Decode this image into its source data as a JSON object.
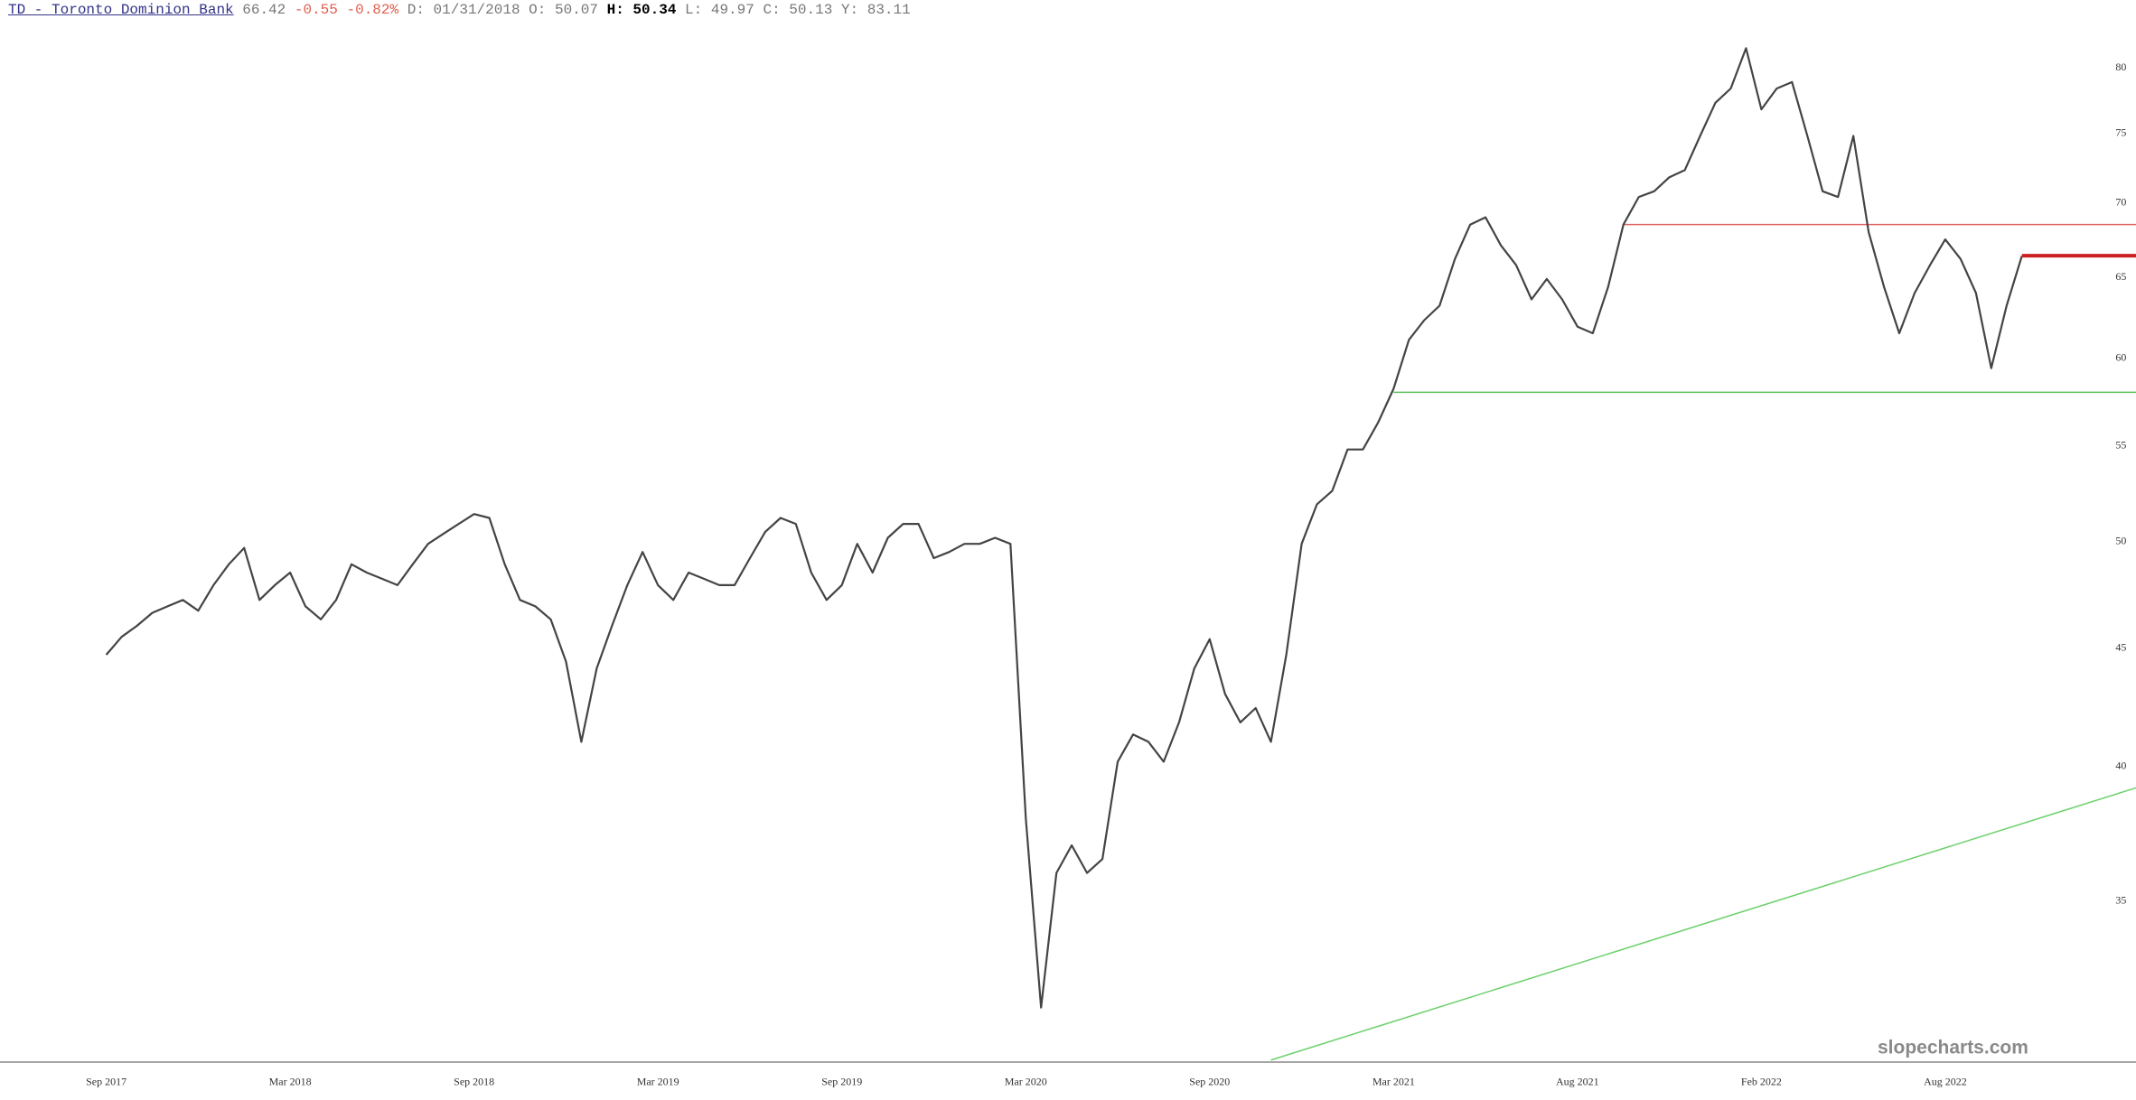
{
  "header": {
    "symbol": "TD - Toronto Dominion Bank",
    "price": 66.42,
    "change": -0.55,
    "change_pct": "-0.82%",
    "fields": [
      {
        "label": "D:",
        "value": "01/31/2018"
      },
      {
        "label": "O:",
        "value": 50.07
      },
      {
        "label": "H:",
        "value": 50.34,
        "highlight": true
      },
      {
        "label": "L:",
        "value": 49.97
      },
      {
        "label": "C:",
        "value": 50.13
      },
      {
        "label": "Y:",
        "value": 83.11
      }
    ]
  },
  "watermark": "slopecharts.com",
  "chart_data": {
    "type": "line",
    "color": "#444444",
    "log_scale": true,
    "categories": [
      "Sep 2017",
      null,
      null,
      null,
      null,
      null,
      null,
      null,
      null,
      null,
      null,
      null,
      "Mar 2018",
      null,
      null,
      null,
      null,
      null,
      null,
      null,
      null,
      null,
      null,
      null,
      "Sep 2018",
      null,
      null,
      null,
      null,
      null,
      null,
      null,
      null,
      null,
      null,
      null,
      "Mar 2019",
      null,
      null,
      null,
      null,
      null,
      null,
      null,
      null,
      null,
      null,
      null,
      "Sep 2019",
      null,
      null,
      null,
      null,
      null,
      null,
      null,
      null,
      null,
      null,
      null,
      "Mar 2020",
      null,
      null,
      null,
      null,
      null,
      null,
      null,
      null,
      null,
      null,
      null,
      "Sep 2020",
      null,
      null,
      null,
      null,
      null,
      null,
      null,
      null,
      null,
      null,
      null,
      "Mar 2021",
      null,
      null,
      null,
      null,
      null,
      null,
      null,
      null,
      null,
      null,
      null,
      "Aug 2021",
      null,
      null,
      null,
      null,
      null,
      null,
      null,
      null,
      null,
      null,
      null,
      "Feb 2022",
      null,
      null,
      null,
      null,
      null,
      null,
      null,
      null,
      null,
      null,
      null,
      "Aug 2022",
      null,
      null,
      null,
      null,
      null
    ],
    "values": [
      44.7,
      45.5,
      46.0,
      46.6,
      46.9,
      47.2,
      46.7,
      47.9,
      48.9,
      49.7,
      47.2,
      47.9,
      48.5,
      46.9,
      46.3,
      47.2,
      48.9,
      48.5,
      48.2,
      47.9,
      48.9,
      49.9,
      50.4,
      50.9,
      51.4,
      51.2,
      48.9,
      47.2,
      46.9,
      46.3,
      44.4,
      41.0,
      44.1,
      46.0,
      47.9,
      49.5,
      47.9,
      47.2,
      48.5,
      48.2,
      47.9,
      47.9,
      49.2,
      50.5,
      51.2,
      50.9,
      48.5,
      47.2,
      47.9,
      49.9,
      48.5,
      50.2,
      50.9,
      50.9,
      49.2,
      49.5,
      49.9,
      49.9,
      50.2,
      49.9,
      38.0,
      31.5,
      36.0,
      37.0,
      36.0,
      36.5,
      40.2,
      41.3,
      41.0,
      40.2,
      41.8,
      44.1,
      45.4,
      43.0,
      41.8,
      42.4,
      41.0,
      44.7,
      49.9,
      51.9,
      52.6,
      54.8,
      54.8,
      56.3,
      58.2,
      61.1,
      62.3,
      63.2,
      66.2,
      68.5,
      69.0,
      67.1,
      65.8,
      63.6,
      64.9,
      63.6,
      61.9,
      61.5,
      64.4,
      68.5,
      70.4,
      70.8,
      71.8,
      72.3,
      74.8,
      77.3,
      78.4,
      81.6,
      76.8,
      78.4,
      78.9,
      74.8,
      70.8,
      70.4,
      74.8,
      68.0,
      64.4,
      61.5,
      64.0,
      65.8,
      67.5,
      66.2,
      64.0,
      59.4,
      63.2,
      66.4
    ],
    "ylim": [
      29.84,
      85.6
    ],
    "yticks": [
      35,
      40,
      45,
      50,
      55,
      60,
      65,
      70,
      75,
      80
    ],
    "lines": [
      {
        "value": 68.5,
        "color": "#e06060",
        "start": 99
      },
      {
        "value": 58.0,
        "color": "#5cc05c",
        "start": 84
      }
    ],
    "price_line_color": "#cc2020",
    "trendline": {
      "color": "#6cd06c",
      "x": [
        76,
        125
      ],
      "y": [
        29.9,
        37.8
      ]
    }
  }
}
